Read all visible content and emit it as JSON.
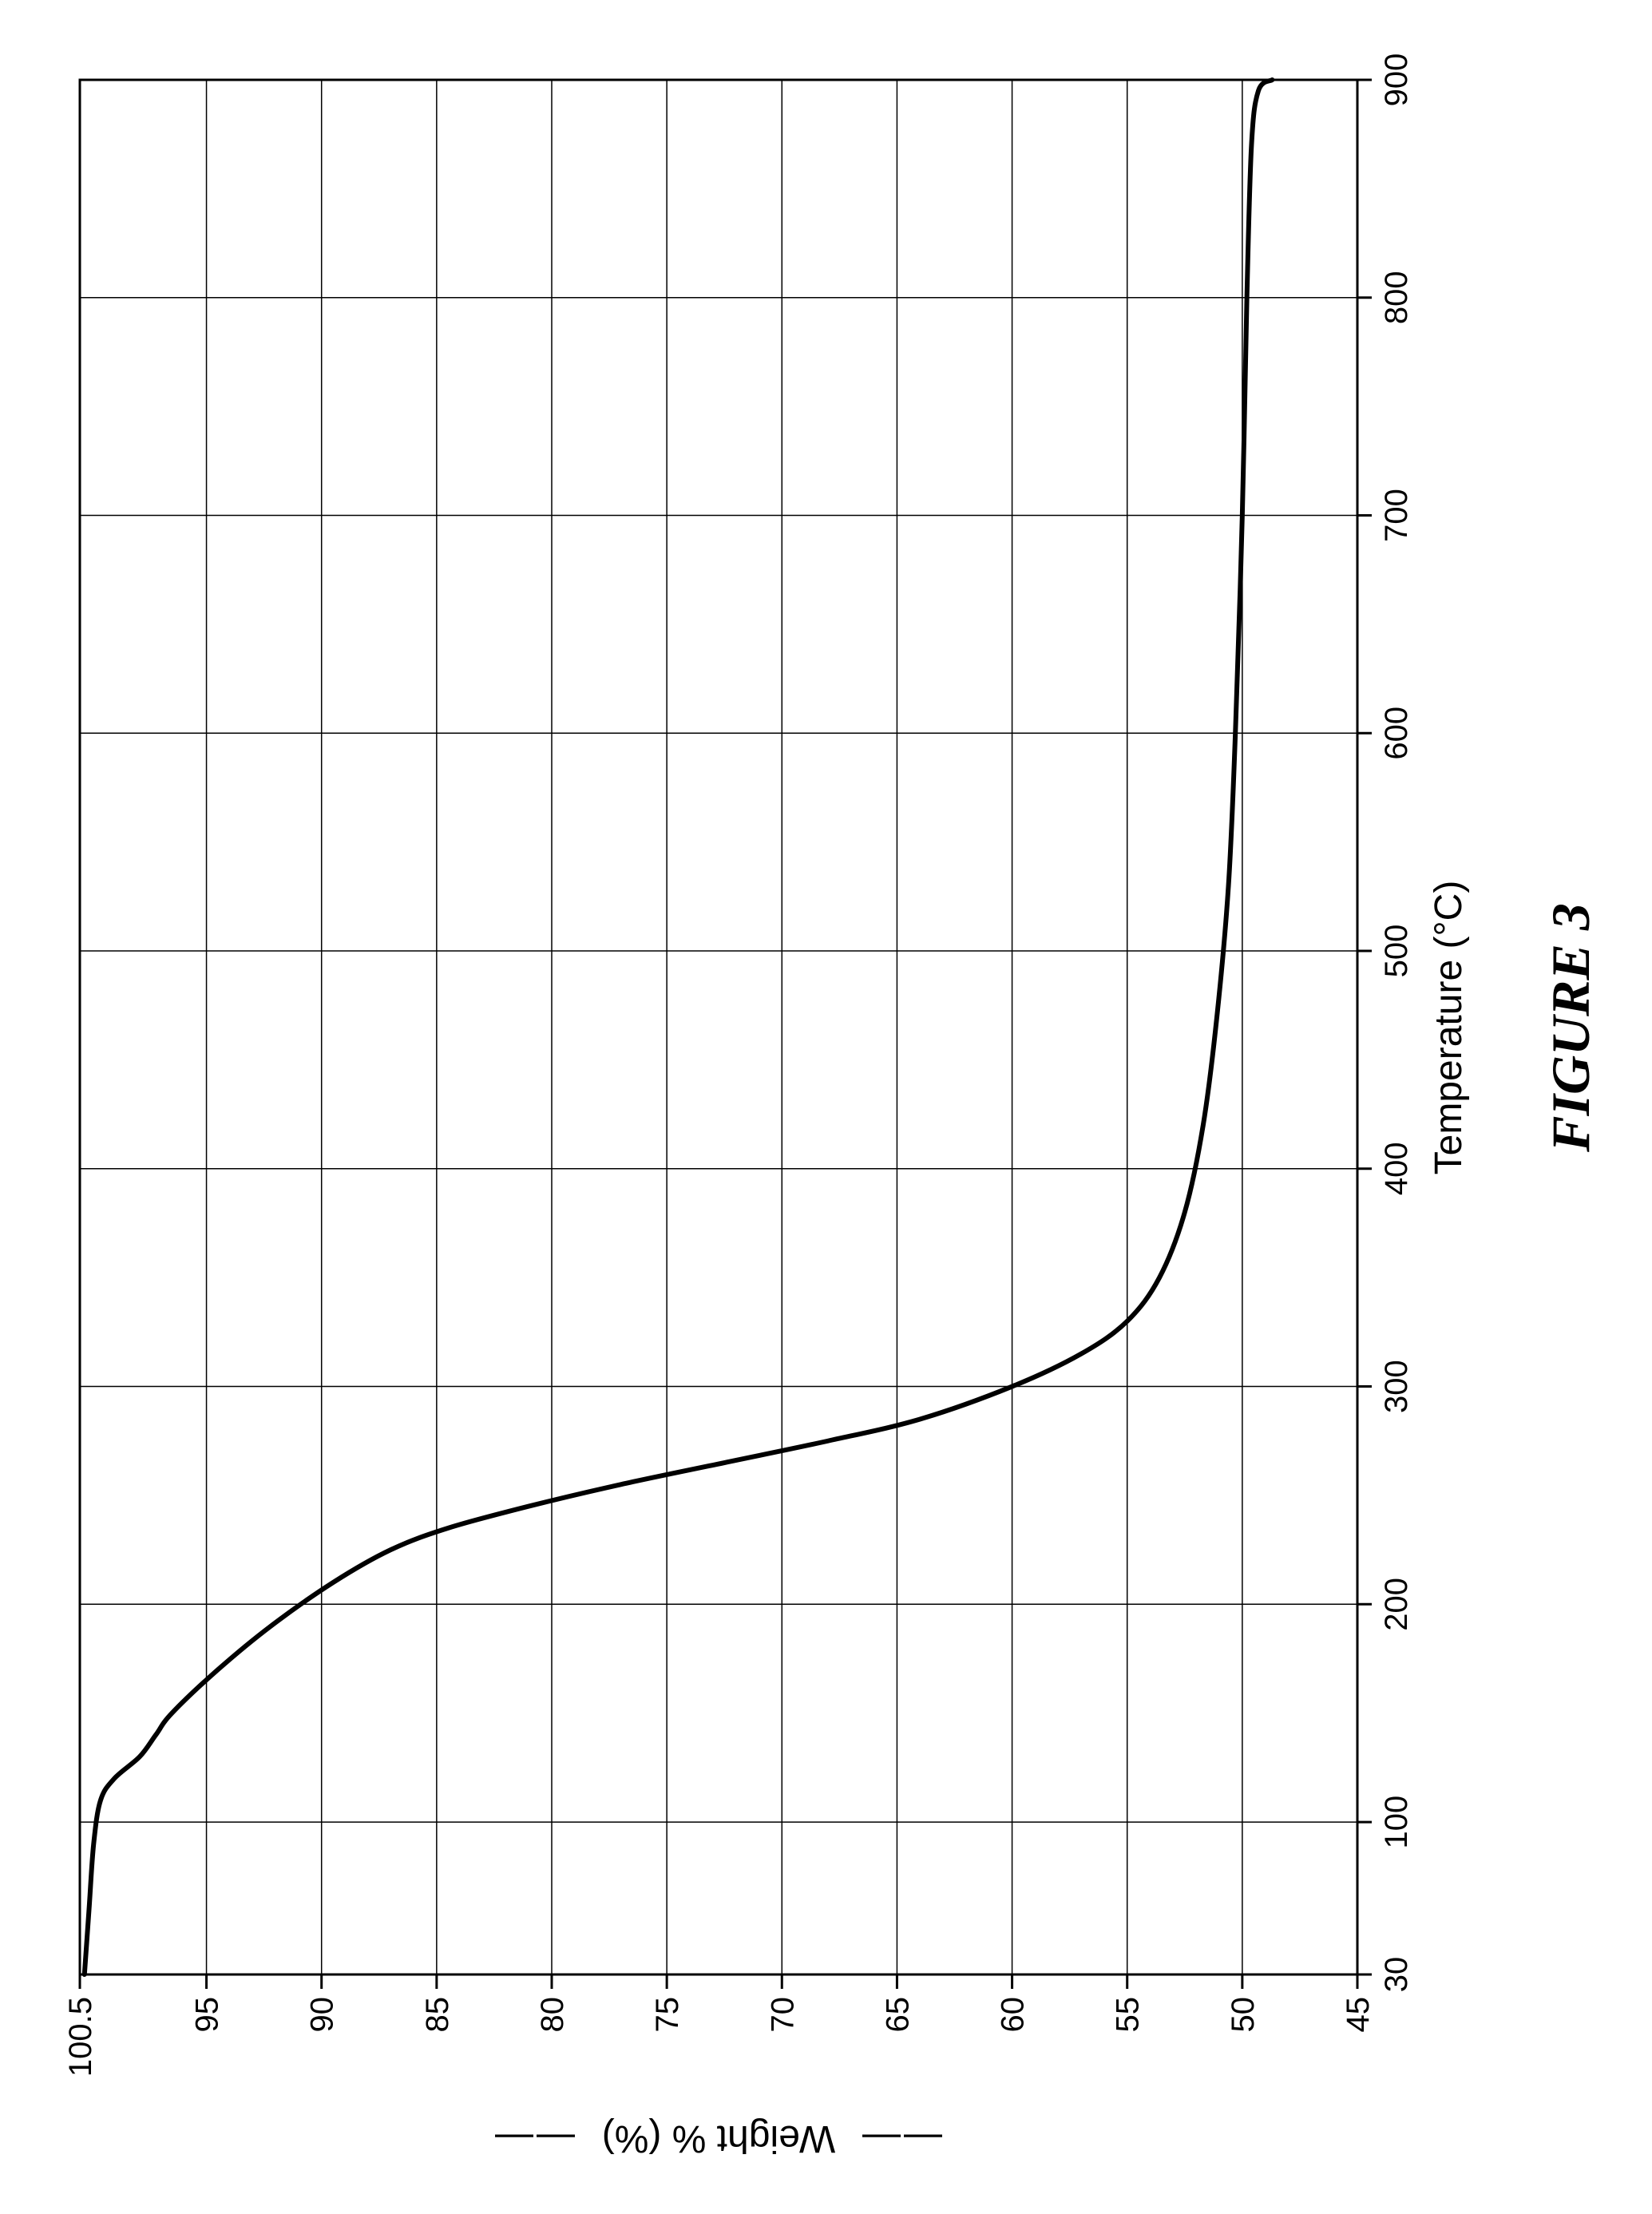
{
  "figure": {
    "caption": "FIGURE 3",
    "caption_fontsize": 68,
    "caption_font_family": "Times New Roman",
    "caption_font_style": "italic bold"
  },
  "chart": {
    "type": "line",
    "background_color": "#ffffff",
    "plot_border_color": "#000000",
    "plot_border_width": 3,
    "grid_color": "#000000",
    "grid_width": 1.5,
    "curve_color": "#000000",
    "curve_width": 6,
    "x_axis": {
      "label": "Temperature (°C)",
      "label_fontsize": 48,
      "min": 30,
      "max": 900,
      "ticks": [
        30,
        100,
        200,
        300,
        400,
        500,
        600,
        700,
        800,
        900
      ],
      "tick_fontsize": 40
    },
    "y_axis": {
      "label": "Weight % (%)",
      "label_fontsize": 48,
      "label_flanks": "— —",
      "min": 45,
      "max": 100.5,
      "ticks": [
        45,
        50,
        55,
        60,
        65,
        70,
        75,
        80,
        85,
        90,
        95,
        100.5
      ],
      "tick_fontsize": 40
    },
    "series": {
      "name": "Weight %",
      "data": [
        {
          "x": 30,
          "y": 100.3
        },
        {
          "x": 60,
          "y": 100.1
        },
        {
          "x": 90,
          "y": 99.9
        },
        {
          "x": 110,
          "y": 99.6
        },
        {
          "x": 120,
          "y": 99.0
        },
        {
          "x": 130,
          "y": 97.9
        },
        {
          "x": 140,
          "y": 97.2
        },
        {
          "x": 150,
          "y": 96.5
        },
        {
          "x": 170,
          "y": 94.5
        },
        {
          "x": 190,
          "y": 92.2
        },
        {
          "x": 210,
          "y": 89.5
        },
        {
          "x": 225,
          "y": 87.0
        },
        {
          "x": 235,
          "y": 84.5
        },
        {
          "x": 245,
          "y": 81.0
        },
        {
          "x": 255,
          "y": 77.0
        },
        {
          "x": 265,
          "y": 72.5
        },
        {
          "x": 275,
          "y": 68.0
        },
        {
          "x": 285,
          "y": 64.0
        },
        {
          "x": 300,
          "y": 60.0
        },
        {
          "x": 315,
          "y": 57.0
        },
        {
          "x": 330,
          "y": 55.0
        },
        {
          "x": 350,
          "y": 53.6
        },
        {
          "x": 380,
          "y": 52.5
        },
        {
          "x": 420,
          "y": 51.7
        },
        {
          "x": 470,
          "y": 51.1
        },
        {
          "x": 530,
          "y": 50.6
        },
        {
          "x": 600,
          "y": 50.3
        },
        {
          "x": 700,
          "y": 50.0
        },
        {
          "x": 800,
          "y": 49.8
        },
        {
          "x": 870,
          "y": 49.6
        },
        {
          "x": 895,
          "y": 49.3
        },
        {
          "x": 900,
          "y": 48.7
        }
      ]
    }
  }
}
